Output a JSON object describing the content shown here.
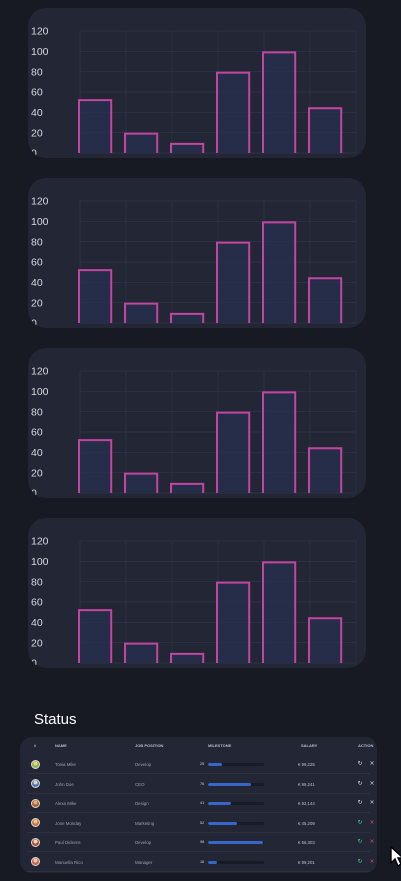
{
  "chart_data": [
    {
      "type": "bar",
      "categories": [
        "",
        "",
        "",
        "",
        "",
        ""
      ],
      "values": [
        52,
        19,
        9,
        79,
        99,
        44
      ],
      "ylim": [
        0,
        120
      ],
      "yticks": [
        0,
        20,
        40,
        60,
        80,
        100,
        120
      ],
      "grid": true,
      "colors": {
        "stroke": "#c2469f",
        "fill": "#283150",
        "grid": "#30364a",
        "text": "#d6d9e2"
      }
    },
    {
      "type": "bar",
      "categories": [
        "",
        "",
        "",
        "",
        "",
        ""
      ],
      "values": [
        52,
        19,
        9,
        79,
        99,
        44
      ],
      "ylim": [
        0,
        120
      ],
      "yticks": [
        0,
        20,
        40,
        60,
        80,
        100,
        120
      ],
      "grid": true,
      "colors": {
        "stroke": "#c2469f",
        "fill": "#283150",
        "grid": "#30364a",
        "text": "#d6d9e2"
      }
    },
    {
      "type": "bar",
      "categories": [
        "",
        "",
        "",
        "",
        "",
        ""
      ],
      "values": [
        52,
        19,
        9,
        79,
        99,
        44
      ],
      "ylim": [
        0,
        120
      ],
      "yticks": [
        0,
        20,
        40,
        60,
        80,
        100,
        120
      ],
      "grid": true,
      "colors": {
        "stroke": "#c2469f",
        "fill": "#283150",
        "grid": "#30364a",
        "text": "#d6d9e2"
      }
    },
    {
      "type": "bar",
      "categories": [
        "",
        "",
        "",
        "",
        "",
        ""
      ],
      "values": [
        52,
        19,
        9,
        79,
        99,
        44
      ],
      "ylim": [
        0,
        120
      ],
      "yticks": [
        0,
        20,
        40,
        60,
        80,
        100,
        120
      ],
      "grid": true,
      "colors": {
        "stroke": "#c2469f",
        "fill": "#283150",
        "grid": "#30364a",
        "text": "#d6d9e2"
      }
    }
  ],
  "status": {
    "title": "Status",
    "columns": [
      "#",
      "Name",
      "Job Position",
      "Milestone",
      "Salary",
      "Action"
    ],
    "rows": [
      {
        "name": "Tonia Mike",
        "job": "Develop",
        "milestone_percent": 25,
        "milestone_label": "25",
        "salary": "€ 99,225",
        "avatar_colors": [
          "#f0d36a",
          "#8ab458"
        ],
        "action_icons": [
          "refresh-icon",
          "close-icon"
        ],
        "action_colors": [
          "#d9dde7",
          "#d9dde7"
        ]
      },
      {
        "name": "John Doe",
        "job": "CEO",
        "milestone_percent": 76,
        "milestone_label": "76",
        "salary": "€ 99,241",
        "avatar_colors": [
          "#dfd4c9",
          "#4b78b3"
        ],
        "action_icons": [
          "refresh-icon",
          "close-icon"
        ],
        "action_colors": [
          "#d9dde7",
          "#d9dde7"
        ]
      },
      {
        "name": "Alexa Mike",
        "job": "Design",
        "milestone_percent": 41,
        "milestone_label": "41",
        "salary": "€ 92,144",
        "avatar_colors": [
          "#dfb275",
          "#a45f36"
        ],
        "action_icons": [
          "refresh-icon",
          "close-icon"
        ],
        "action_colors": [
          "#d9dde7",
          "#d9dde7"
        ]
      },
      {
        "name": "Jone Monday",
        "job": "Marketing",
        "milestone_percent": 52,
        "milestone_label": "52",
        "salary": "€ 45,209",
        "avatar_colors": [
          "#f0c27d",
          "#c96f55"
        ],
        "action_icons": [
          "refresh-icon",
          "close-icon"
        ],
        "action_colors": [
          "#3ed09a",
          "#e94662"
        ]
      },
      {
        "name": "Paul Dickens",
        "job": "Develop",
        "milestone_percent": 98,
        "milestone_label": "98",
        "salary": "€ 66,303",
        "avatar_colors": [
          "#f2d5b5",
          "#a4533f"
        ],
        "action_icons": [
          "refresh-icon",
          "close-icon"
        ],
        "action_colors": [
          "#3ed09a",
          "#e94662"
        ]
      },
      {
        "name": "Manuella Rico",
        "job": "Manager",
        "milestone_percent": 16,
        "milestone_label": "16",
        "salary": "€ 99,201",
        "avatar_colors": [
          "#edc7a4",
          "#c16454"
        ],
        "action_icons": [
          "refresh-icon",
          "close-icon"
        ],
        "action_colors": [
          "#3ed09a",
          "#e94662"
        ]
      }
    ]
  },
  "icons": {
    "refresh": "↻",
    "close": "×",
    "cursor": "mouse-cursor-icon"
  }
}
